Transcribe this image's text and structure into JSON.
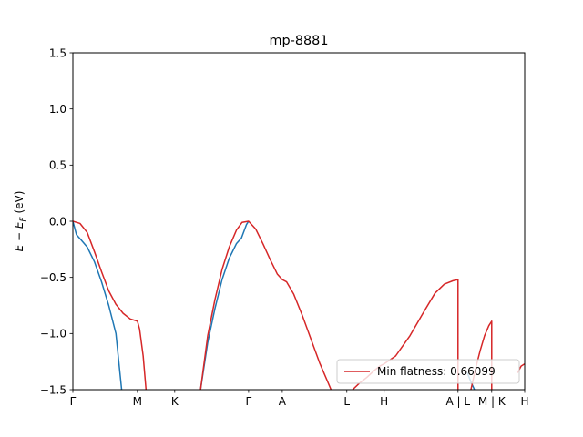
{
  "chart_data": {
    "type": "line",
    "title": "mp-8881",
    "xlabel": "",
    "ylabel": "E − E_F (eV)",
    "ylabel_parts": {
      "main": "E − E",
      "sub": "F",
      "unit": " (eV)"
    },
    "ylim": [
      -1.5,
      1.5
    ],
    "xlim": [
      0,
      6.3
    ],
    "grid": false,
    "legend_position": "lower-right",
    "y_ticks": [
      {
        "value": 1.5,
        "label": "1.5"
      },
      {
        "value": 1.0,
        "label": "1.0"
      },
      {
        "value": 0.5,
        "label": "0.5"
      },
      {
        "value": 0.0,
        "label": "0.0"
      },
      {
        "value": -0.5,
        "label": "−0.5"
      },
      {
        "value": -1.0,
        "label": "−1.0"
      },
      {
        "value": -1.5,
        "label": "−1.5"
      }
    ],
    "x_ticks": [
      {
        "value": 0.0,
        "label": "Γ"
      },
      {
        "value": 0.9,
        "label": "M"
      },
      {
        "value": 1.42,
        "label": "K"
      },
      {
        "value": 2.45,
        "label": "Γ"
      },
      {
        "value": 2.92,
        "label": "A"
      },
      {
        "value": 3.82,
        "label": "L"
      },
      {
        "value": 4.34,
        "label": "H"
      },
      {
        "value": 5.37,
        "label": "A | L"
      },
      {
        "value": 5.84,
        "label": "M | K"
      },
      {
        "value": 6.3,
        "label": "H"
      }
    ],
    "series": [
      {
        "name": "",
        "color": "#1f77b4",
        "segments": [
          [
            [
              0.0,
              0.0
            ],
            [
              0.05,
              -0.12
            ],
            [
              0.12,
              -0.17
            ],
            [
              0.2,
              -0.23
            ],
            [
              0.3,
              -0.36
            ],
            [
              0.4,
              -0.54
            ],
            [
              0.5,
              -0.75
            ],
            [
              0.6,
              -1.0
            ],
            [
              0.68,
              -1.5
            ]
          ],
          [
            [
              1.78,
              -1.5
            ],
            [
              1.88,
              -1.08
            ],
            [
              1.98,
              -0.78
            ],
            [
              2.08,
              -0.52
            ],
            [
              2.18,
              -0.33
            ],
            [
              2.28,
              -0.2
            ],
            [
              2.35,
              -0.15
            ],
            [
              2.42,
              -0.03
            ],
            [
              2.45,
              0.0
            ]
          ],
          [
            [
              5.5,
              -1.35
            ],
            [
              5.55,
              -1.43
            ],
            [
              5.6,
              -1.5
            ]
          ]
        ]
      },
      {
        "name": "Min flatness: 0.66099",
        "color": "#d62728",
        "segments": [
          [
            [
              0.0,
              0.0
            ],
            [
              0.1,
              -0.02
            ],
            [
              0.2,
              -0.1
            ],
            [
              0.3,
              -0.27
            ],
            [
              0.4,
              -0.45
            ],
            [
              0.5,
              -0.62
            ],
            [
              0.6,
              -0.74
            ],
            [
              0.7,
              -0.82
            ],
            [
              0.8,
              -0.87
            ],
            [
              0.9,
              -0.89
            ],
            [
              0.93,
              -0.96
            ],
            [
              0.98,
              -1.2
            ],
            [
              1.02,
              -1.5
            ]
          ],
          [
            [
              1.78,
              -1.5
            ],
            [
              1.88,
              -1.02
            ],
            [
              1.98,
              -0.7
            ],
            [
              2.08,
              -0.43
            ],
            [
              2.18,
              -0.23
            ],
            [
              2.28,
              -0.08
            ],
            [
              2.36,
              -0.01
            ],
            [
              2.45,
              0.0
            ],
            [
              2.55,
              -0.07
            ],
            [
              2.65,
              -0.2
            ],
            [
              2.75,
              -0.34
            ],
            [
              2.85,
              -0.47
            ],
            [
              2.92,
              -0.52
            ],
            [
              2.98,
              -0.54
            ],
            [
              3.08,
              -0.65
            ],
            [
              3.2,
              -0.84
            ],
            [
              3.32,
              -1.05
            ],
            [
              3.44,
              -1.26
            ],
            [
              3.56,
              -1.44
            ],
            [
              3.6,
              -1.5
            ]
          ],
          [
            [
              3.9,
              -1.5
            ],
            [
              4.0,
              -1.44
            ],
            [
              4.1,
              -1.39
            ],
            [
              4.2,
              -1.33
            ],
            [
              4.28,
              -1.29
            ],
            [
              4.34,
              -1.27
            ],
            [
              4.5,
              -1.2
            ],
            [
              4.7,
              -1.02
            ],
            [
              4.9,
              -0.8
            ],
            [
              5.05,
              -0.64
            ],
            [
              5.18,
              -0.56
            ],
            [
              5.3,
              -0.53
            ],
            [
              5.37,
              -0.52
            ],
            [
              5.37,
              -1.5
            ]
          ],
          [
            [
              5.55,
              -1.5
            ],
            [
              5.62,
              -1.3
            ],
            [
              5.68,
              -1.15
            ],
            [
              5.74,
              -1.02
            ],
            [
              5.8,
              -0.93
            ],
            [
              5.84,
              -0.89
            ],
            [
              5.84,
              -1.5
            ]
          ],
          [
            [
              6.2,
              -1.35
            ],
            [
              6.25,
              -1.29
            ],
            [
              6.3,
              -1.27
            ]
          ]
        ]
      }
    ]
  }
}
